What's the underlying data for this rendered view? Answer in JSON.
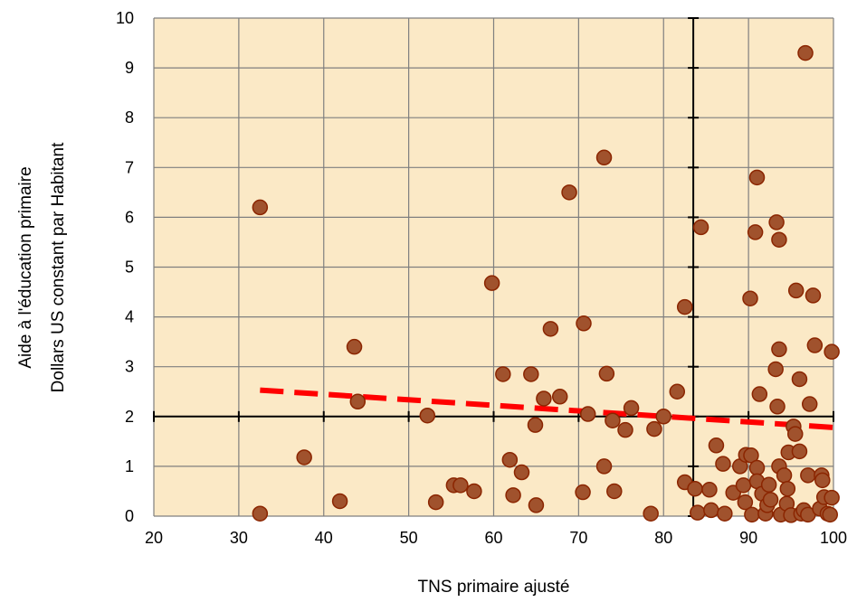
{
  "chart_data": {
    "type": "scatter",
    "xlabel": "TNS primaire ajusté",
    "ylabel_lines": [
      "Aide à l'éducation primaire",
      "Dollars US constant par Habitant"
    ],
    "xlim": [
      20,
      100
    ],
    "ylim": [
      0,
      10
    ],
    "x_ticks": [
      20,
      30,
      40,
      50,
      60,
      70,
      80,
      90,
      100
    ],
    "y_ticks": [
      0,
      1,
      2,
      3,
      4,
      5,
      6,
      7,
      8,
      9,
      10
    ],
    "grid": true,
    "reference_lines": {
      "x": 83.5,
      "y": 2
    },
    "trendline": {
      "x": [
        32.5,
        100
      ],
      "y": [
        2.53,
        1.78
      ],
      "style": "dashed",
      "color": "#ff0000"
    },
    "colors": {
      "plot_background": "#fbe9c6",
      "grid": "#7f7f7f",
      "point_fill": "#a0522d",
      "point_stroke": "#8b2500",
      "trendline": "#ff0000"
    },
    "points": [
      {
        "x": 32.5,
        "y": 6.2
      },
      {
        "x": 32.5,
        "y": 0.05
      },
      {
        "x": 37.7,
        "y": 1.18
      },
      {
        "x": 41.9,
        "y": 0.3
      },
      {
        "x": 43.6,
        "y": 3.4
      },
      {
        "x": 44.0,
        "y": 2.3
      },
      {
        "x": 52.2,
        "y": 2.02
      },
      {
        "x": 53.2,
        "y": 0.28
      },
      {
        "x": 55.3,
        "y": 0.62
      },
      {
        "x": 56.1,
        "y": 0.62
      },
      {
        "x": 57.7,
        "y": 0.5
      },
      {
        "x": 59.8,
        "y": 4.68
      },
      {
        "x": 61.1,
        "y": 2.85
      },
      {
        "x": 61.9,
        "y": 1.13
      },
      {
        "x": 62.3,
        "y": 0.42
      },
      {
        "x": 63.3,
        "y": 0.88
      },
      {
        "x": 64.4,
        "y": 2.85
      },
      {
        "x": 64.9,
        "y": 1.83
      },
      {
        "x": 65.0,
        "y": 0.22
      },
      {
        "x": 65.9,
        "y": 2.36
      },
      {
        "x": 66.7,
        "y": 3.76
      },
      {
        "x": 67.8,
        "y": 2.4
      },
      {
        "x": 68.9,
        "y": 6.5
      },
      {
        "x": 70.5,
        "y": 0.48
      },
      {
        "x": 70.6,
        "y": 3.87
      },
      {
        "x": 71.1,
        "y": 2.05
      },
      {
        "x": 73.0,
        "y": 7.2
      },
      {
        "x": 73.0,
        "y": 1.0
      },
      {
        "x": 73.3,
        "y": 2.86
      },
      {
        "x": 74.0,
        "y": 1.92
      },
      {
        "x": 74.2,
        "y": 0.5
      },
      {
        "x": 75.5,
        "y": 1.73
      },
      {
        "x": 76.2,
        "y": 2.17
      },
      {
        "x": 78.5,
        "y": 0.05
      },
      {
        "x": 78.9,
        "y": 1.75
      },
      {
        "x": 80.0,
        "y": 2.0
      },
      {
        "x": 81.6,
        "y": 2.5
      },
      {
        "x": 82.5,
        "y": 4.2
      },
      {
        "x": 82.5,
        "y": 0.68
      },
      {
        "x": 83.7,
        "y": 0.55
      },
      {
        "x": 84.0,
        "y": 0.07
      },
      {
        "x": 84.4,
        "y": 5.8
      },
      {
        "x": 85.4,
        "y": 0.53
      },
      {
        "x": 85.6,
        "y": 0.12
      },
      {
        "x": 86.2,
        "y": 1.42
      },
      {
        "x": 87.0,
        "y": 1.05
      },
      {
        "x": 87.2,
        "y": 0.05
      },
      {
        "x": 88.2,
        "y": 0.47
      },
      {
        "x": 89.0,
        "y": 1.0
      },
      {
        "x": 89.4,
        "y": 0.62
      },
      {
        "x": 89.6,
        "y": 0.28
      },
      {
        "x": 89.7,
        "y": 1.23
      },
      {
        "x": 90.2,
        "y": 4.37
      },
      {
        "x": 90.3,
        "y": 1.22
      },
      {
        "x": 90.4,
        "y": 0.03
      },
      {
        "x": 90.8,
        "y": 5.7
      },
      {
        "x": 91.0,
        "y": 6.8
      },
      {
        "x": 91.0,
        "y": 0.97
      },
      {
        "x": 91.3,
        "y": 2.45
      },
      {
        "x": 91.0,
        "y": 0.7
      },
      {
        "x": 91.6,
        "y": 0.45
      },
      {
        "x": 92.0,
        "y": 0.05
      },
      {
        "x": 92.2,
        "y": 0.22
      },
      {
        "x": 92.4,
        "y": 0.63
      },
      {
        "x": 92.6,
        "y": 0.33
      },
      {
        "x": 93.2,
        "y": 2.95
      },
      {
        "x": 93.3,
        "y": 5.9
      },
      {
        "x": 93.4,
        "y": 2.2
      },
      {
        "x": 93.6,
        "y": 3.35
      },
      {
        "x": 93.6,
        "y": 5.55
      },
      {
        "x": 93.6,
        "y": 1.0
      },
      {
        "x": 93.8,
        "y": 0.03
      },
      {
        "x": 94.2,
        "y": 0.82
      },
      {
        "x": 94.5,
        "y": 0.25
      },
      {
        "x": 94.6,
        "y": 0.55
      },
      {
        "x": 94.7,
        "y": 1.28
      },
      {
        "x": 95.0,
        "y": 0.02
      },
      {
        "x": 95.3,
        "y": 1.8
      },
      {
        "x": 95.6,
        "y": 4.53
      },
      {
        "x": 95.5,
        "y": 1.65
      },
      {
        "x": 96.0,
        "y": 1.3
      },
      {
        "x": 96.0,
        "y": 2.75
      },
      {
        "x": 96.2,
        "y": 0.05
      },
      {
        "x": 96.5,
        "y": 0.12
      },
      {
        "x": 96.7,
        "y": 9.3
      },
      {
        "x": 97.0,
        "y": 0.82
      },
      {
        "x": 97.0,
        "y": 0.03
      },
      {
        "x": 97.2,
        "y": 2.25
      },
      {
        "x": 97.6,
        "y": 4.43
      },
      {
        "x": 97.8,
        "y": 3.43
      },
      {
        "x": 98.4,
        "y": 0.15
      },
      {
        "x": 98.6,
        "y": 0.82
      },
      {
        "x": 98.7,
        "y": 0.72
      },
      {
        "x": 98.9,
        "y": 0.38
      },
      {
        "x": 99.3,
        "y": 0.05
      },
      {
        "x": 99.6,
        "y": 0.03
      },
      {
        "x": 99.8,
        "y": 3.3
      },
      {
        "x": 99.8,
        "y": 0.37
      }
    ]
  }
}
